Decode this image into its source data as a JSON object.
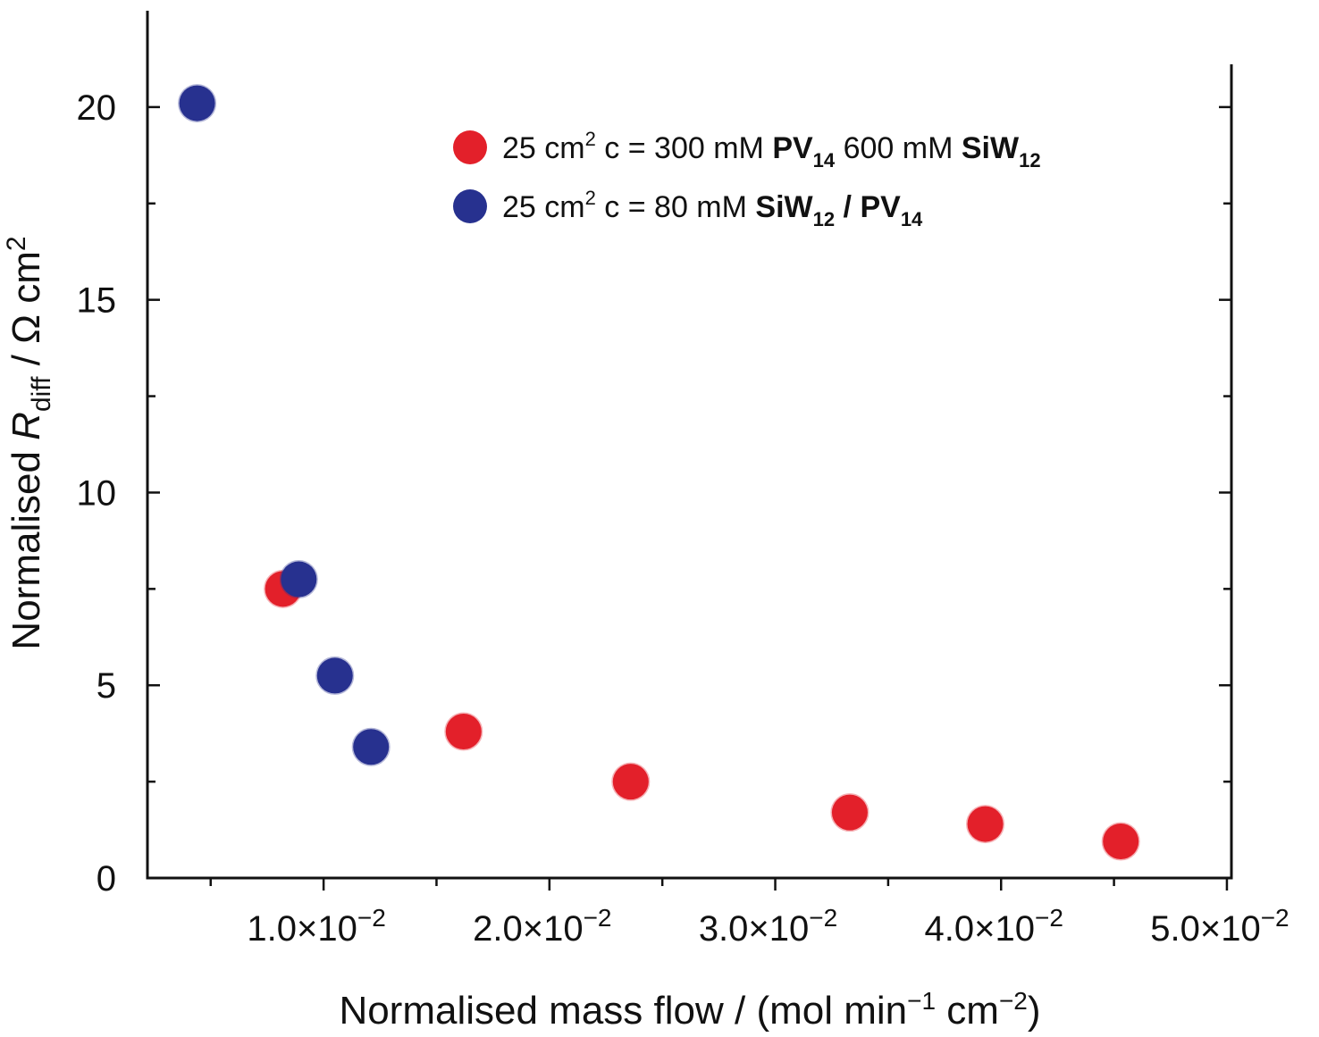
{
  "chart_data": {
    "type": "scatter",
    "xlabel": "Normalised mass flow / (mol min−1 cm−2)",
    "xlabel_parts": {
      "text": "Normalised mass flow / (mol min",
      "sup1": "−1",
      "mid": " cm",
      "sup2": "−2",
      "end": ")"
    },
    "ylabel": "Normalised R_diff / Ω cm2",
    "ylabel_parts": {
      "prefix": "Normalised ",
      "symbol": "R",
      "sub": "diff",
      "mid": " / Ω cm",
      "sup": "2"
    },
    "xlim": [
      0.0022,
      0.0502
    ],
    "ylim": [
      0,
      22.5
    ],
    "x_ticks": [
      {
        "value": 0.01,
        "mantissa": "1.0×10",
        "exp": "−2"
      },
      {
        "value": 0.02,
        "mantissa": "2.0×10",
        "exp": "−2"
      },
      {
        "value": 0.03,
        "mantissa": "3.0×10",
        "exp": "−2"
      },
      {
        "value": 0.04,
        "mantissa": "4.0×10",
        "exp": "−2"
      },
      {
        "value": 0.05,
        "mantissa": "5.0×10",
        "exp": "−2"
      }
    ],
    "y_ticks": [
      {
        "value": 0,
        "label": "0"
      },
      {
        "value": 5,
        "label": "5"
      },
      {
        "value": 10,
        "label": "10"
      },
      {
        "value": 15,
        "label": "15"
      },
      {
        "value": 20,
        "label": "20"
      }
    ],
    "series": [
      {
        "name": "25 cm2 c = 300 mM PV14 600 mM SiW12",
        "color": "#e3202a",
        "legend_parts": [
          {
            "t": "25 cm",
            "style": "normal"
          },
          {
            "t": "2",
            "style": "sup"
          },
          {
            "t": " c = 300 mM ",
            "style": "normal"
          },
          {
            "t": "PV",
            "style": "bold"
          },
          {
            "t": "14",
            "style": "boldsub"
          },
          {
            "t": " 600 mM ",
            "style": "normal"
          },
          {
            "t": "SiW",
            "style": "bold"
          },
          {
            "t": "12",
            "style": "boldsub"
          }
        ],
        "points": [
          {
            "x": 0.0082,
            "y": 7.5
          },
          {
            "x": 0.0162,
            "y": 3.8
          },
          {
            "x": 0.0236,
            "y": 2.5
          },
          {
            "x": 0.0333,
            "y": 1.7
          },
          {
            "x": 0.0393,
            "y": 1.4
          },
          {
            "x": 0.0453,
            "y": 0.95
          }
        ]
      },
      {
        "name": "25 cm2 c = 80 mM SiW12 / PV14",
        "color": "#27318f",
        "legend_parts": [
          {
            "t": "25 cm",
            "style": "normal"
          },
          {
            "t": "2",
            "style": "sup"
          },
          {
            "t": " c = 80 mM ",
            "style": "normal"
          },
          {
            "t": "SiW",
            "style": "bold"
          },
          {
            "t": "12",
            "style": "boldsub"
          },
          {
            "t": " / PV",
            "style": "bold"
          },
          {
            "t": "14",
            "style": "boldsub"
          }
        ],
        "points": [
          {
            "x": 0.0044,
            "y": 20.1
          },
          {
            "x": 0.0089,
            "y": 7.75
          },
          {
            "x": 0.0105,
            "y": 5.25
          },
          {
            "x": 0.0121,
            "y": 3.4
          }
        ]
      }
    ],
    "legend_position": "top-center",
    "grid": false
  }
}
